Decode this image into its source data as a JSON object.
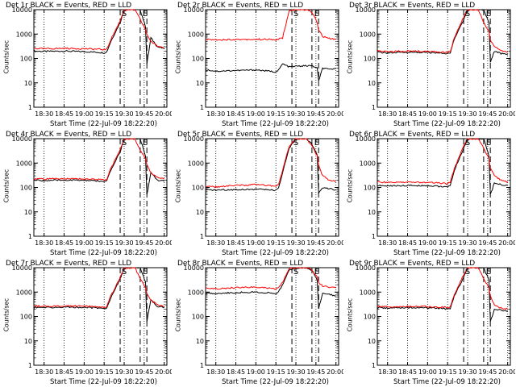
{
  "chart_data": [
    {
      "type": "line",
      "title": "Det 1r BLACK = Events, RED = LLD",
      "xlabel": "Start Time (22-Jul-09 18:22:20)",
      "ylabel": "Counts/sec",
      "xticks": [
        "18:30",
        "18:45",
        "19:00",
        "19:15",
        "19:30",
        "19:45",
        "20:00"
      ],
      "yticks": [
        "10000",
        "1000",
        "100",
        "10",
        "1"
      ],
      "ylim": [
        1,
        10000
      ],
      "yscale": "log",
      "markers": [
        "S",
        "E"
      ],
      "series": [
        {
          "name": "Events",
          "color": "#000000",
          "x": [
            "18:22",
            "18:30",
            "18:45",
            "19:00",
            "19:10",
            "19:15",
            "19:17",
            "19:20",
            "19:27",
            "19:30",
            "19:38",
            "19:42",
            "19:46",
            "19:47",
            "19:50",
            "19:55",
            "20:00"
          ],
          "values": [
            200,
            195,
            200,
            190,
            180,
            170,
            190,
            500,
            3000,
            10000,
            10000,
            10000,
            2000,
            60,
            700,
            300,
            250
          ]
        },
        {
          "name": "LLD",
          "color": "#ff0000",
          "x": [
            "18:22",
            "18:30",
            "18:45",
            "19:00",
            "19:10",
            "19:15",
            "19:17",
            "19:20",
            "19:27",
            "19:30",
            "19:38",
            "19:42",
            "19:46",
            "19:47",
            "19:50",
            "19:55",
            "20:00"
          ],
          "values": [
            260,
            250,
            260,
            250,
            240,
            230,
            240,
            600,
            3500,
            10000,
            10000,
            4000,
            1500,
            1000,
            500,
            320,
            280
          ]
        }
      ]
    },
    {
      "type": "line",
      "title": "Det 2r BLACK = Events, RED = LLD",
      "xlabel": "Start Time (22-Jul-09 18:22:20)",
      "ylabel": "Counts/sec",
      "xticks": [
        "18:30",
        "18:45",
        "19:00",
        "19:15",
        "19:30",
        "19:45",
        "20:00"
      ],
      "yticks": [
        "10000",
        "1000",
        "100",
        "10",
        "1"
      ],
      "ylim": [
        1,
        10000
      ],
      "yscale": "log",
      "markers": [
        "S",
        "E"
      ],
      "series": [
        {
          "name": "Events",
          "color": "#000000",
          "x": [
            "18:22",
            "18:30",
            "18:45",
            "19:00",
            "19:10",
            "19:15",
            "19:17",
            "19:20",
            "19:25",
            "19:30",
            "19:38",
            "19:42",
            "19:46",
            "19:47",
            "19:50",
            "19:55",
            "20:00"
          ],
          "values": [
            35,
            30,
            32,
            34,
            30,
            28,
            33,
            60,
            45,
            48,
            50,
            50,
            40,
            12,
            40,
            35,
            40
          ]
        },
        {
          "name": "LLD",
          "color": "#ff0000",
          "x": [
            "18:22",
            "18:30",
            "18:45",
            "19:00",
            "19:10",
            "19:15",
            "19:17",
            "19:20",
            "19:25",
            "19:30",
            "19:38",
            "19:42",
            "19:46",
            "19:47",
            "19:50",
            "19:55",
            "20:00"
          ],
          "values": [
            600,
            590,
            600,
            610,
            600,
            580,
            620,
            700,
            9000,
            10000,
            10000,
            8000,
            3000,
            1500,
            800,
            650,
            600
          ]
        }
      ]
    },
    {
      "type": "line",
      "title": "Det 3r BLACK = Events, RED = LLD",
      "xlabel": "Start Time (22-Jul-09 18:22:20)",
      "ylabel": "Counts/sec",
      "xticks": [
        "18:30",
        "18:45",
        "19:00",
        "19:15",
        "19:30",
        "19:45",
        "20:00"
      ],
      "yticks": [
        "10000",
        "1000",
        "100",
        "10",
        "1"
      ],
      "ylim": [
        1,
        10000
      ],
      "yscale": "log",
      "markers": [
        "S",
        "E"
      ],
      "series": [
        {
          "name": "Events",
          "color": "#000000",
          "x": [
            "18:22",
            "18:30",
            "18:45",
            "19:00",
            "19:10",
            "19:15",
            "19:17",
            "19:20",
            "19:27",
            "19:30",
            "19:38",
            "19:42",
            "19:46",
            "19:47",
            "19:50",
            "19:55",
            "20:00"
          ],
          "values": [
            180,
            170,
            180,
            175,
            165,
            160,
            175,
            600,
            4000,
            10000,
            10000,
            10000,
            3000,
            70,
            200,
            160,
            140
          ]
        },
        {
          "name": "LLD",
          "color": "#ff0000",
          "x": [
            "18:22",
            "18:30",
            "18:45",
            "19:00",
            "19:10",
            "19:15",
            "19:17",
            "19:20",
            "19:27",
            "19:30",
            "19:38",
            "19:42",
            "19:46",
            "19:47",
            "19:50",
            "19:55",
            "20:00"
          ],
          "values": [
            200,
            190,
            200,
            195,
            185,
            180,
            195,
            700,
            5000,
            10000,
            10000,
            3000,
            1200,
            600,
            300,
            220,
            180
          ]
        }
      ]
    },
    {
      "type": "line",
      "title": "Det 4r BLACK = Events, RED = LLD",
      "xlabel": "Start Time (22-Jul-09 18:22:20)",
      "ylabel": "Counts/sec",
      "xticks": [
        "18:30",
        "18:45",
        "19:00",
        "19:15",
        "19:30",
        "19:45",
        "20:00"
      ],
      "yticks": [
        "10000",
        "1000",
        "100",
        "10",
        "1"
      ],
      "ylim": [
        1,
        10000
      ],
      "yscale": "log",
      "markers": [
        "S",
        "E"
      ],
      "series": [
        {
          "name": "Events",
          "color": "#000000",
          "x": [
            "18:22",
            "18:30",
            "18:45",
            "19:00",
            "19:10",
            "19:15",
            "19:17",
            "19:20",
            "19:27",
            "19:30",
            "19:38",
            "19:42",
            "19:46",
            "19:47",
            "19:50",
            "19:55",
            "20:00"
          ],
          "values": [
            200,
            190,
            200,
            195,
            185,
            170,
            185,
            500,
            3000,
            10000,
            10000,
            10000,
            2000,
            50,
            400,
            200,
            180
          ]
        },
        {
          "name": "LLD",
          "color": "#ff0000",
          "x": [
            "18:22",
            "18:30",
            "18:45",
            "19:00",
            "19:10",
            "19:15",
            "19:17",
            "19:20",
            "19:27",
            "19:30",
            "19:38",
            "19:42",
            "19:46",
            "19:47",
            "19:50",
            "19:55",
            "20:00"
          ],
          "values": [
            230,
            220,
            230,
            225,
            215,
            200,
            215,
            600,
            3500,
            10000,
            10000,
            3500,
            1500,
            900,
            400,
            260,
            220
          ]
        }
      ]
    },
    {
      "type": "line",
      "title": "Det 5r BLACK = Events, RED = LLD",
      "xlabel": "Start Time (22-Jul-09 18:22:20)",
      "ylabel": "Counts/sec",
      "xticks": [
        "18:30",
        "18:45",
        "19:00",
        "19:15",
        "19:30",
        "19:45",
        "20:00"
      ],
      "yticks": [
        "10000",
        "1000",
        "100",
        "10",
        "1"
      ],
      "ylim": [
        1,
        10000
      ],
      "yscale": "log",
      "markers": [
        "S",
        "E"
      ],
      "series": [
        {
          "name": "Events",
          "color": "#000000",
          "x": [
            "18:22",
            "18:30",
            "18:45",
            "19:00",
            "19:10",
            "19:15",
            "19:17",
            "19:20",
            "19:25",
            "19:30",
            "19:38",
            "19:42",
            "19:46",
            "19:47",
            "19:50",
            "19:55",
            "20:00"
          ],
          "values": [
            80,
            78,
            82,
            85,
            80,
            75,
            90,
            400,
            4000,
            10000,
            10000,
            6000,
            2000,
            60,
            100,
            90,
            80
          ]
        },
        {
          "name": "LLD",
          "color": "#ff0000",
          "x": [
            "18:22",
            "18:30",
            "18:45",
            "19:00",
            "19:10",
            "19:15",
            "19:17",
            "19:20",
            "19:25",
            "19:30",
            "19:38",
            "19:42",
            "19:46",
            "19:47",
            "19:50",
            "19:55",
            "20:00"
          ],
          "values": [
            110,
            105,
            120,
            130,
            120,
            110,
            130,
            500,
            5000,
            10000,
            10000,
            5000,
            2000,
            800,
            300,
            200,
            180
          ]
        }
      ]
    },
    {
      "type": "line",
      "title": "Det 6r BLACK = Events, RED = LLD",
      "xlabel": "Start Time (22-Jul-09 18:22:20)",
      "ylabel": "Counts/sec",
      "xticks": [
        "18:30",
        "18:45",
        "19:00",
        "19:15",
        "19:30",
        "19:45",
        "20:00"
      ],
      "yticks": [
        "10000",
        "1000",
        "100",
        "10",
        "1"
      ],
      "ylim": [
        1,
        10000
      ],
      "yscale": "log",
      "markers": [
        "S",
        "E"
      ],
      "series": [
        {
          "name": "Events",
          "color": "#000000",
          "x": [
            "18:22",
            "18:30",
            "18:45",
            "19:00",
            "19:10",
            "19:15",
            "19:17",
            "19:20",
            "19:27",
            "19:30",
            "19:38",
            "19:42",
            "19:46",
            "19:47",
            "19:50",
            "19:55",
            "20:00"
          ],
          "values": [
            120,
            115,
            120,
            118,
            110,
            100,
            120,
            500,
            4000,
            10000,
            10000,
            10000,
            2000,
            50,
            150,
            130,
            120
          ]
        },
        {
          "name": "LLD",
          "color": "#ff0000",
          "x": [
            "18:22",
            "18:30",
            "18:45",
            "19:00",
            "19:10",
            "19:15",
            "19:17",
            "19:20",
            "19:27",
            "19:30",
            "19:38",
            "19:42",
            "19:46",
            "19:47",
            "19:50",
            "19:55",
            "20:00"
          ],
          "values": [
            170,
            160,
            165,
            160,
            150,
            140,
            165,
            600,
            5000,
            10000,
            10000,
            4000,
            1500,
            600,
            300,
            200,
            170
          ]
        }
      ]
    },
    {
      "type": "line",
      "title": "Det 7r BLACK = Events, RED = LLD",
      "xlabel": "Start Time (22-Jul-09 18:22:20)",
      "ylabel": "Counts/sec",
      "xticks": [
        "18:30",
        "18:45",
        "19:00",
        "19:15",
        "19:30",
        "19:45",
        "20:00"
      ],
      "yticks": [
        "10000",
        "1000",
        "100",
        "10",
        "1"
      ],
      "ylim": [
        1,
        10000
      ],
      "yscale": "log",
      "markers": [
        "S",
        "E"
      ],
      "series": [
        {
          "name": "Events",
          "color": "#000000",
          "x": [
            "18:22",
            "18:30",
            "18:45",
            "19:00",
            "19:10",
            "19:15",
            "19:17",
            "19:20",
            "19:27",
            "19:30",
            "19:38",
            "19:42",
            "19:46",
            "19:47",
            "19:50",
            "19:55",
            "20:00"
          ],
          "values": [
            240,
            230,
            240,
            235,
            225,
            210,
            225,
            600,
            3500,
            10000,
            10000,
            10000,
            2500,
            60,
            500,
            260,
            230
          ]
        },
        {
          "name": "LLD",
          "color": "#ff0000",
          "x": [
            "18:22",
            "18:30",
            "18:45",
            "19:00",
            "19:10",
            "19:15",
            "19:17",
            "19:20",
            "19:27",
            "19:30",
            "19:38",
            "19:42",
            "19:46",
            "19:47",
            "19:50",
            "19:55",
            "20:00"
          ],
          "values": [
            270,
            260,
            270,
            265,
            255,
            240,
            255,
            700,
            4000,
            10000,
            10000,
            3500,
            1500,
            900,
            450,
            300,
            260
          ]
        }
      ]
    },
    {
      "type": "line",
      "title": "Det 8r BLACK = Events, RED = LLD",
      "xlabel": "Start Time (22-Jul-09 18:22:20)",
      "ylabel": "Counts/sec",
      "xticks": [
        "18:30",
        "18:45",
        "19:00",
        "19:15",
        "19:30",
        "19:45",
        "20:00"
      ],
      "yticks": [
        "10000",
        "1000",
        "100",
        "10",
        "1"
      ],
      "ylim": [
        1,
        10000
      ],
      "yscale": "log",
      "markers": [
        "S",
        "E"
      ],
      "series": [
        {
          "name": "Events",
          "color": "#000000",
          "x": [
            "18:22",
            "18:30",
            "18:45",
            "19:00",
            "19:10",
            "19:15",
            "19:17",
            "19:20",
            "19:25",
            "19:30",
            "19:38",
            "19:42",
            "19:46",
            "19:47",
            "19:50",
            "19:55",
            "20:00"
          ],
          "values": [
            900,
            880,
            950,
            1000,
            920,
            850,
            1000,
            2000,
            8000,
            10000,
            10000,
            8000,
            3000,
            200,
            900,
            800,
            700
          ]
        },
        {
          "name": "LLD",
          "color": "#ff0000",
          "x": [
            "18:22",
            "18:30",
            "18:45",
            "19:00",
            "19:10",
            "19:15",
            "19:17",
            "19:20",
            "19:25",
            "19:30",
            "19:38",
            "19:42",
            "19:46",
            "19:47",
            "19:50",
            "19:55",
            "20:00"
          ],
          "values": [
            1400,
            1350,
            1500,
            1600,
            1450,
            1350,
            1550,
            2500,
            9000,
            10000,
            10000,
            8000,
            4000,
            2500,
            1800,
            1600,
            1500
          ]
        }
      ]
    },
    {
      "type": "line",
      "title": "Det 9r BLACK = Events, RED = LLD",
      "xlabel": "Start Time (22-Jul-09 18:22:20)",
      "ylabel": "Counts/sec",
      "xticks": [
        "18:30",
        "18:45",
        "19:00",
        "19:15",
        "19:30",
        "19:45",
        "20:00"
      ],
      "yticks": [
        "10000",
        "1000",
        "100",
        "10",
        "1"
      ],
      "ylim": [
        1,
        10000
      ],
      "yscale": "log",
      "markers": [
        "S",
        "E"
      ],
      "series": [
        {
          "name": "Events",
          "color": "#000000",
          "x": [
            "18:22",
            "18:30",
            "18:45",
            "19:00",
            "19:10",
            "19:15",
            "19:17",
            "19:20",
            "19:27",
            "19:30",
            "19:38",
            "19:42",
            "19:46",
            "19:47",
            "19:50",
            "19:55",
            "20:00"
          ],
          "values": [
            230,
            220,
            230,
            225,
            215,
            200,
            215,
            700,
            4000,
            10000,
            10000,
            10000,
            3000,
            60,
            200,
            180,
            170
          ]
        },
        {
          "name": "LLD",
          "color": "#ff0000",
          "x": [
            "18:22",
            "18:30",
            "18:45",
            "19:00",
            "19:10",
            "19:15",
            "19:17",
            "19:20",
            "19:27",
            "19:30",
            "19:38",
            "19:42",
            "19:46",
            "19:47",
            "19:50",
            "19:55",
            "20:00"
          ],
          "values": [
            260,
            250,
            260,
            255,
            245,
            230,
            245,
            800,
            5000,
            10000,
            10000,
            3500,
            1500,
            700,
            300,
            220,
            200
          ]
        }
      ]
    }
  ]
}
